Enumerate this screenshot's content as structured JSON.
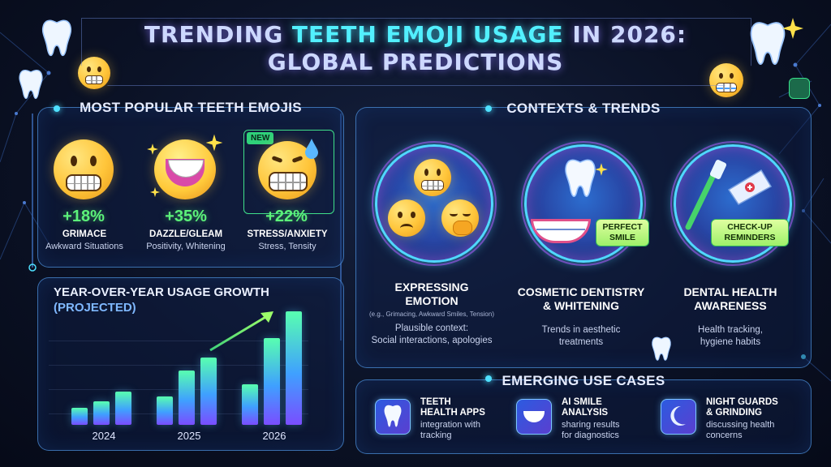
{
  "title": {
    "part1": "TRENDING ",
    "highlight": "TEETH EMOJI USAGE",
    "part2": " IN 2026:",
    "line2": "GLOBAL PREDICTIONS"
  },
  "popular": {
    "heading": "MOST POPULAR TEETH EMOJIS",
    "new_tag": "NEW",
    "items": [
      {
        "pct": "+18%",
        "name": "GRIMACE",
        "desc": "Awkward Situations"
      },
      {
        "pct": "+35%",
        "name": "DAZZLE/GLEAM",
        "desc": "Positivity, Whitening"
      },
      {
        "pct": "+22%",
        "name": "STRESS/ANXIETY",
        "desc": "Stress, Tensity"
      }
    ]
  },
  "growth": {
    "heading": "YEAR-OVER-YEAR USAGE GROWTH",
    "sub": "(PROJECTED)"
  },
  "chart_data": {
    "type": "bar",
    "title": "YEAR-OVER-YEAR USAGE GROWTH",
    "subtitle": "(PROJECTED)",
    "categories": [
      "2024",
      "2025",
      "2026"
    ],
    "series": [
      {
        "values": [
          12,
          20,
          29
        ]
      },
      {
        "values": [
          17,
          39,
          62
        ]
      },
      {
        "values": [
          24,
          48,
          81
        ]
      }
    ],
    "grid": true
  },
  "contexts": {
    "heading": "CONTEXTS & TRENDS",
    "items": [
      {
        "title1": "EXPRESSING",
        "title2": "EMOTION",
        "small": "(e.g., Grimacing, Awkward Smiles, Tension)",
        "desc1": "Plausible context:",
        "desc2": "Social interactions, apologies"
      },
      {
        "title1": "COSMETIC DENTISTRY",
        "title2": "& WHITENING",
        "desc1": "Trends in aesthetic",
        "desc2": "treatments",
        "label1": "PERFECT",
        "label2": "SMILE"
      },
      {
        "title1": "DENTAL HEALTH",
        "title2": "AWARENESS",
        "desc1": "Health tracking,",
        "desc2": "hygiene habits",
        "label1": "CHECK-UP",
        "label2": "REMINDERS"
      }
    ]
  },
  "emerging": {
    "heading": "EMERGING USE CASES",
    "items": [
      {
        "t1": "TEETH",
        "t2": "HEALTH APPS",
        "d1": "integration with",
        "d2": "tracking",
        "icon": "tooth-icon"
      },
      {
        "t1": "AI SMILE",
        "t2": "ANALYSIS",
        "d1": "sharing results",
        "d2": "for diagnostics",
        "icon": "smile-scan-icon"
      },
      {
        "t1": "NIGHT GUARDS",
        "t2": "& GRINDING",
        "d1": "discussing health",
        "d2": "concerns",
        "icon": "night-guard-icon"
      }
    ]
  },
  "colors": {
    "accent": "#4fe1ff",
    "growth_green": "#5cf27a",
    "title_cyan": "#52f0ff"
  }
}
